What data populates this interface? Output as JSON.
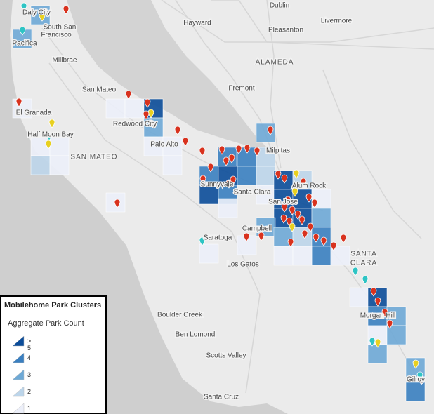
{
  "map": {
    "labels": [
      "Daly City",
      "South San",
      "Francisco",
      "Dublin",
      "Hayward",
      "Pleasanton",
      "Livermore",
      "Pacifica",
      "Millbrae",
      "ALAMEDA",
      "Fremont",
      "San Mateo",
      "El Granada",
      "Redwood City",
      "Half Moon Bay",
      "Palo Alto",
      "Milpitas",
      "SAN MATEO",
      "Sunnyvale",
      "Santa Clara",
      "Alum Rock",
      "San Jose",
      "Campbell",
      "Saratoga",
      "SANTA",
      "CLARA",
      "Los Gatos",
      "Morgan Hill",
      "Boulder Creek",
      "Ben Lomond",
      "Scotts Valley",
      "Gilroy",
      "Santa Cruz"
    ]
  },
  "legend": {
    "title": "Mobilehome Park Clusters",
    "subtitle": "Aggregate Park Count",
    "items": [
      {
        "label": "> 5",
        "color": "#0b4c99"
      },
      {
        "label": "4",
        "color": "#3a7fc0"
      },
      {
        "label": "3",
        "color": "#6ea9d6"
      },
      {
        "label": "2",
        "color": "#bcd5ea"
      },
      {
        "label": "1",
        "color": "#eceff9"
      }
    ]
  }
}
